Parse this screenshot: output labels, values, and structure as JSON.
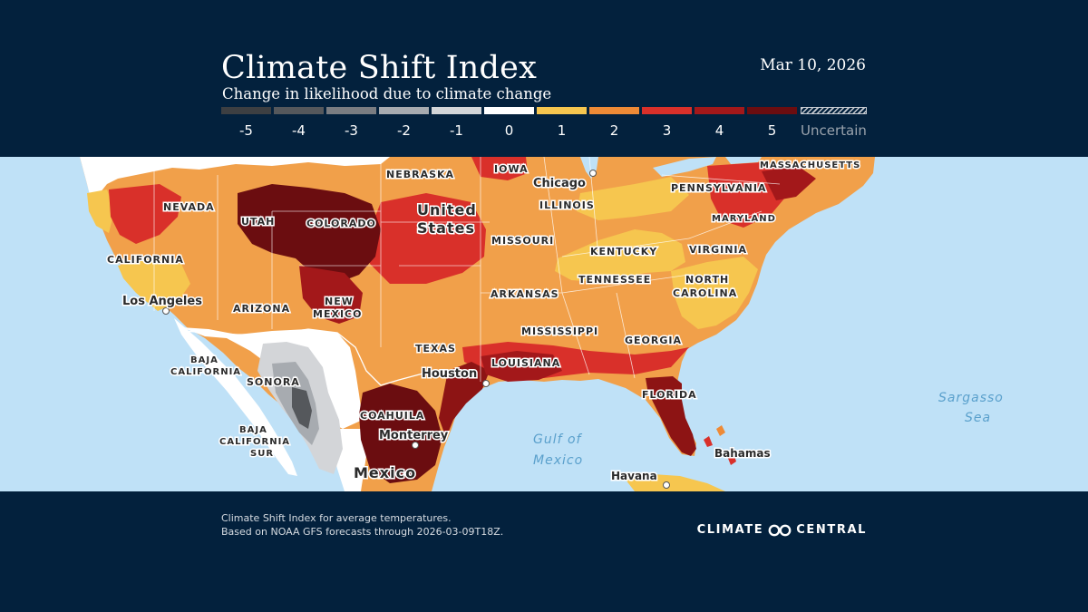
{
  "header": {
    "title": "Climate Shift Index",
    "subtitle": "Change in likelihood due to climate change",
    "date": "Mar 10, 2026"
  },
  "legend": {
    "items": [
      {
        "label": "-5",
        "color": "#3d3f42"
      },
      {
        "label": "-4",
        "color": "#55585c"
      },
      {
        "label": "-3",
        "color": "#7a7d82"
      },
      {
        "label": "-2",
        "color": "#a7abb0"
      },
      {
        "label": "-1",
        "color": "#d3d5d8"
      },
      {
        "label": "0",
        "color": "#ffffff"
      },
      {
        "label": "1",
        "color": "#f6c64f"
      },
      {
        "label": "2",
        "color": "#ee8a36"
      },
      {
        "label": "3",
        "color": "#d9302a"
      },
      {
        "label": "4",
        "color": "#a3181a"
      },
      {
        "label": "5",
        "color": "#6b0d10"
      }
    ],
    "uncertain_label": "Uncertain"
  },
  "map": {
    "colors": {
      "ocean": "#bfe1f7",
      "land_neutral": "#ffffff",
      "border": "#ffffff"
    },
    "labels": {
      "nebraska": "NEBRASKA",
      "iowa": "IOWA",
      "chicago": "Chicago",
      "massachusetts": "MASSACHUSETTS",
      "nevada": "NEVADA",
      "utah": "UTAH",
      "colorado": "COLORADO",
      "united_states_1": "United",
      "united_states_2": "States",
      "illinois": "ILLINOIS",
      "pennsylvania": "PENNSYLVANIA",
      "maryland": "MARYLAND",
      "missouri": "MISSOURI",
      "kentucky": "KENTUCKY",
      "virginia": "VIRGINIA",
      "california": "CALIFORNIA",
      "tennessee": "TENNESSEE",
      "north_carolina_1": "NORTH",
      "north_carolina_2": "CAROLINA",
      "los_angeles": "Los Angeles",
      "arizona": "ARIZONA",
      "new_mexico_1": "NEW",
      "new_mexico_2": "MEXICO",
      "arkansas": "ARKANSAS",
      "mississippi": "MISSISSIPPI",
      "georgia": "GEORGIA",
      "texas": "TEXAS",
      "baja_california_1": "BAJA",
      "baja_california_2": "CALIFORNIA",
      "louisiana": "LOUISIANA",
      "houston": "Houston",
      "sonora": "SONORA",
      "florida": "FLORIDA",
      "sargasso_1": "Sargasso",
      "sargasso_2": "Sea",
      "coahuila": "COAHUILA",
      "baja_sur_1": "BAJA",
      "baja_sur_2": "CALIFORNIA",
      "baja_sur_3": "SUR",
      "monterrey": "Monterrey",
      "gulf_1": "Gulf of",
      "gulf_2": "Mexico",
      "bahamas": "Bahamas",
      "mexico": "Mexico",
      "havana": "Havana"
    }
  },
  "footer": {
    "line1": "Climate Shift Index for average temperatures.",
    "line2": "Based on NOAA GFS forecasts through 2026-03-09T18Z.",
    "brand_left": "CLIMATE",
    "brand_right": "CENTRAL"
  }
}
